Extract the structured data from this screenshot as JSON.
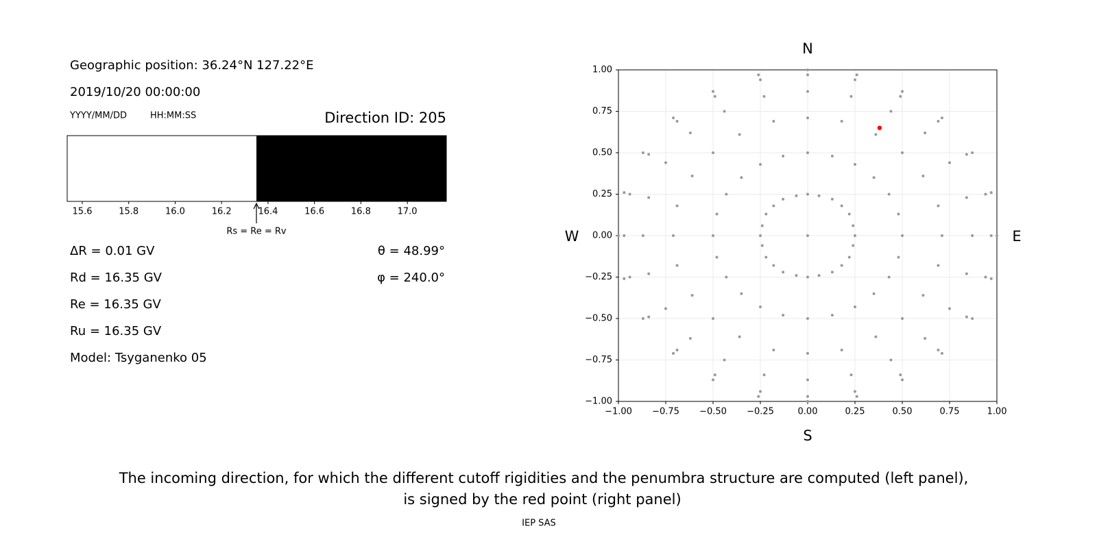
{
  "info": {
    "position": "Geographic position: 36.24°N 127.22°E",
    "datetime": "2019/10/20 00:00:00",
    "date_format": "YYYY/MM/DD",
    "time_format": "HH:MM:SS",
    "direction": "Direction ID: 205",
    "delta_r": "ΔR = 0.01 GV",
    "rd": "Rd = 16.35 GV",
    "re": "Re = 16.35 GV",
    "ru": "Ru = 16.35 GV",
    "model": "Model: Tsyganenko 05",
    "theta": "θ = 48.99°",
    "phi": "φ = 240.0°"
  },
  "chart_data": [
    {
      "type": "penumbra",
      "cutoff": 16.35,
      "cutoff_label": "Rs = Re = Rv",
      "allowed_color": "#ffffff",
      "forbidden_color": "#000000",
      "xlim": [
        15.535,
        17.168
      ],
      "xticks": [
        15.6,
        15.8,
        {
          "value": 16,
          "label": "16.0"
        },
        16.2,
        16.4,
        16.6,
        16.8,
        {
          "value": 17,
          "label": "17.0"
        }
      ]
    },
    {
      "type": "scatter",
      "north": "N",
      "south": "S",
      "west": "W",
      "east": "E",
      "xlim": [
        -1,
        1
      ],
      "ylim": [
        -1,
        1
      ],
      "xticks": [
        {
          "value": -1,
          "label": "−1.00"
        },
        {
          "value": -0.75,
          "label": "−0.75"
        },
        {
          "value": -0.5,
          "label": "−0.50"
        },
        {
          "value": -0.25,
          "label": "−0.25"
        },
        {
          "value": 0,
          "label": "0.00"
        },
        {
          "value": 0.25,
          "label": "0.25"
        },
        {
          "value": 0.5,
          "label": "0.50"
        },
        {
          "value": 0.75,
          "label": "0.75"
        },
        {
          "value": 1,
          "label": "1.00"
        }
      ],
      "yticks": [
        {
          "value": -1,
          "label": "−1.00"
        },
        {
          "value": -0.75,
          "label": "−0.75"
        },
        {
          "value": -0.5,
          "label": "−0.50"
        },
        {
          "value": -0.25,
          "label": "−0.25"
        },
        {
          "value": 0,
          "label": "0.00"
        },
        {
          "value": 0.25,
          "label": "0.25"
        },
        {
          "value": 0.5,
          "label": "0.50"
        },
        {
          "value": 0.75,
          "label": "0.75"
        },
        {
          "value": 1,
          "label": "1.00"
        }
      ],
      "grid": true,
      "series": [
        {
          "color": "#999999",
          "x": [
            0,
            0.25,
            0.24,
            0.22,
            0.18,
            0.13,
            0.06,
            0,
            -0.06,
            -0.13,
            -0.18,
            -0.22,
            -0.24,
            -0.25,
            -0.24,
            -0.22,
            -0.18,
            -0.13,
            -0.06,
            0,
            0.06,
            0.13,
            0.18,
            0.22,
            0.24,
            0.5,
            0.48,
            0.43,
            0.35,
            0.25,
            0.13,
            0,
            -0.13,
            -0.25,
            -0.35,
            -0.43,
            -0.48,
            -0.5,
            -0.48,
            -0.43,
            -0.35,
            -0.25,
            -0.13,
            0,
            0.13,
            0.25,
            0.35,
            0.43,
            0.48,
            0.71,
            0.69,
            0.61,
            0.5,
            0.36,
            0.18,
            0,
            -0.18,
            -0.36,
            -0.5,
            -0.61,
            -0.69,
            -0.71,
            -0.69,
            -0.61,
            -0.5,
            -0.36,
            -0.18,
            0,
            0.18,
            0.36,
            0.5,
            0.61,
            0.69,
            0.87,
            0.84,
            0.75,
            0.62,
            0.44,
            0.23,
            0,
            -0.23,
            -0.44,
            -0.62,
            -0.75,
            -0.84,
            -0.87,
            -0.84,
            -0.75,
            -0.62,
            -0.44,
            -0.23,
            0,
            0.23,
            0.44,
            0.62,
            0.75,
            0.84,
            0.97,
            0.94,
            0.84,
            0.69,
            0.49,
            0.25,
            0,
            -0.25,
            -0.49,
            -0.69,
            -0.84,
            -0.94,
            -0.97,
            -0.94,
            -0.84,
            -0.69,
            -0.49,
            -0.25,
            0,
            0.25,
            0.49,
            0.69,
            0.84,
            0.94,
            1,
            0.97,
            0.87,
            0.71,
            0.5,
            0.26,
            0,
            -0.26,
            -0.5,
            -0.71,
            -0.87,
            -0.97,
            -1,
            -0.97,
            -0.87,
            -0.71,
            -0.5,
            -0.26,
            0,
            0.26,
            0.5,
            0.71,
            0.87,
            0.97
          ],
          "y": [
            0,
            0,
            0.06,
            0.13,
            0.18,
            0.22,
            0.24,
            0.25,
            0.24,
            0.22,
            0.18,
            0.13,
            0.06,
            0,
            -0.06,
            -0.13,
            -0.18,
            -0.22,
            -0.24,
            -0.25,
            -0.24,
            -0.22,
            -0.18,
            -0.13,
            -0.06,
            0,
            0.13,
            0.25,
            0.35,
            0.43,
            0.48,
            0.5,
            0.48,
            0.43,
            0.35,
            0.25,
            0.13,
            0,
            -0.13,
            -0.25,
            -0.35,
            -0.43,
            -0.48,
            -0.5,
            -0.48,
            -0.43,
            -0.35,
            -0.25,
            -0.13,
            0,
            0.18,
            0.36,
            0.5,
            0.61,
            0.69,
            0.71,
            0.69,
            0.61,
            0.5,
            0.36,
            0.18,
            0,
            -0.18,
            -0.36,
            -0.5,
            -0.61,
            -0.69,
            -0.71,
            -0.69,
            -0.61,
            -0.5,
            -0.36,
            -0.18,
            0,
            0.23,
            0.44,
            0.62,
            0.75,
            0.84,
            0.87,
            0.84,
            0.75,
            0.62,
            0.44,
            0.23,
            0,
            -0.23,
            -0.44,
            -0.62,
            -0.75,
            -0.84,
            -0.87,
            -0.84,
            -0.75,
            -0.62,
            -0.44,
            -0.23,
            0,
            0.25,
            0.49,
            0.69,
            0.84,
            0.94,
            0.97,
            0.94,
            0.84,
            0.69,
            0.49,
            0.25,
            0,
            -0.25,
            -0.49,
            -0.69,
            -0.84,
            -0.94,
            -0.97,
            -0.94,
            -0.84,
            -0.69,
            -0.49,
            -0.25,
            0,
            0.26,
            0.5,
            0.71,
            0.87,
            0.97,
            1,
            0.97,
            0.87,
            0.71,
            0.5,
            0.26,
            0,
            -0.26,
            -0.5,
            -0.71,
            -0.87,
            -0.97,
            -1,
            -0.97,
            -0.87,
            -0.71,
            -0.5,
            -0.26
          ]
        },
        {
          "color": "#ff0000",
          "x": [
            0.38
          ],
          "y": [
            0.65
          ]
        }
      ]
    }
  ],
  "caption": [
    "The incoming direction, for which the different cutoff rigidities and the penumbra structure are computed (left panel),",
    "is signed by the red point (right panel)"
  ],
  "footer": "IEP SAS"
}
